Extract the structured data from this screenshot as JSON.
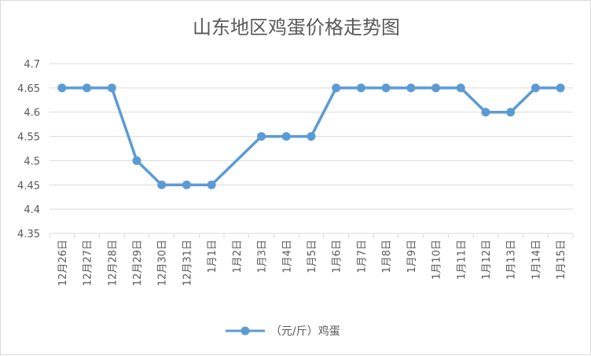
{
  "chart_data": {
    "type": "line",
    "title": "山东地区鸡蛋价格走势图",
    "xlabel": "",
    "ylabel": "",
    "categories": [
      "12月26日",
      "12月27日",
      "12月28日",
      "12月29日",
      "12月30日",
      "12月31日",
      "1月1日",
      "1月2日",
      "1月3日",
      "1月4日",
      "1月5日",
      "1月6日",
      "1月7日",
      "1月8日",
      "1月9日",
      "1月10日",
      "1月11日",
      "1月12日",
      "1月13日",
      "1月14日",
      "1月15日"
    ],
    "series": [
      {
        "name": "（元/斤）鸡蛋",
        "values": [
          4.65,
          4.65,
          4.65,
          4.5,
          4.45,
          4.45,
          4.45,
          null,
          4.55,
          4.55,
          4.55,
          4.65,
          4.65,
          4.65,
          4.65,
          4.65,
          4.65,
          4.6,
          4.6,
          4.65,
          4.65
        ],
        "color": "#5b9bd5"
      }
    ],
    "ylim": [
      4.35,
      4.7
    ],
    "yticks": [
      "4.35",
      "4.4",
      "4.45",
      "4.5",
      "4.55",
      "4.6",
      "4.65",
      "4.7"
    ],
    "grid": true,
    "legend": "bottom"
  },
  "colors": {
    "gridline": "#d9d9d9",
    "text": "#595959",
    "series": "#5b9bd5"
  }
}
